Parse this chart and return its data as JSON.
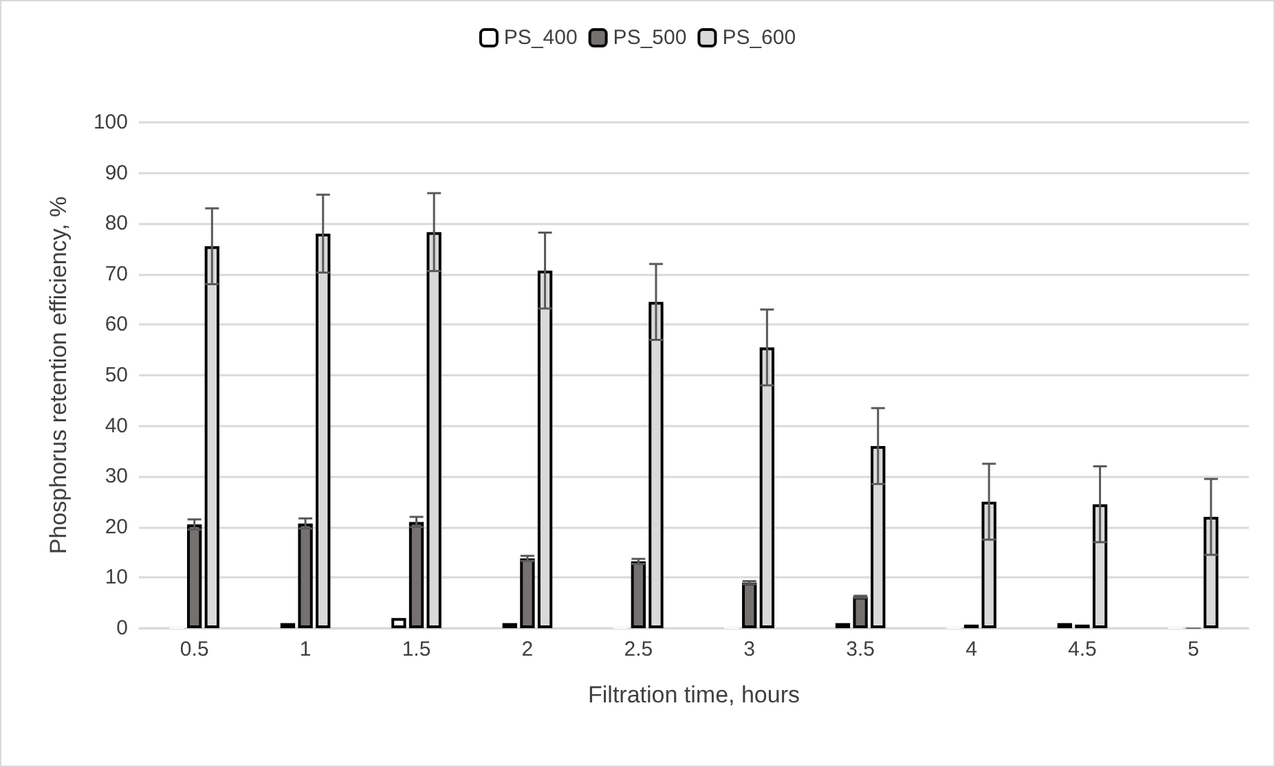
{
  "chart_data": {
    "type": "bar",
    "xlabel": "Filtration time, hours",
    "ylabel": "Phosphorus retention efficiency, %",
    "categories": [
      "0.5",
      "1",
      "1.5",
      "2",
      "2.5",
      "3",
      "3.5",
      "4",
      "4.5",
      "5"
    ],
    "series": [
      {
        "name": "PS_400",
        "color": "#ffffff",
        "values": [
          0,
          1,
          2,
          1,
          0,
          0,
          1,
          0,
          1,
          0
        ]
      },
      {
        "name": "PS_500",
        "color": "#767171",
        "values": [
          20.5,
          20.7,
          21,
          13.8,
          13.2,
          9,
          6.2,
          0.7,
          0.7,
          0
        ],
        "errors": [
          1,
          1,
          1,
          0.5,
          0.5,
          0.3,
          0.2,
          null,
          null,
          null
        ]
      },
      {
        "name": "PS_600",
        "color": "#d9d9d9",
        "values": [
          75.5,
          78,
          78.3,
          70.7,
          64.5,
          55.5,
          36,
          25,
          24.5,
          22
        ],
        "errors": [
          7.5,
          7.7,
          7.7,
          7.5,
          7.5,
          7.5,
          7.5,
          7.5,
          7.5,
          7.5
        ]
      }
    ],
    "ylim": [
      0,
      100
    ],
    "yticks": [
      0,
      10,
      20,
      30,
      40,
      50,
      60,
      70,
      80,
      90,
      100
    ],
    "grid": "y",
    "legend": "top"
  }
}
